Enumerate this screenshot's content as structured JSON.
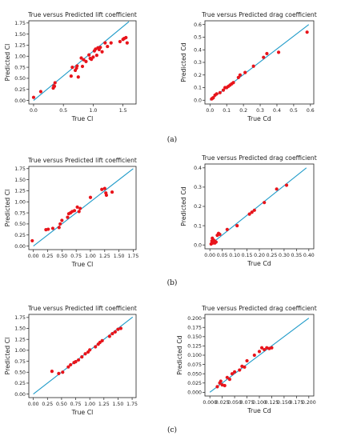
{
  "labels": [
    "(a)",
    "(b)",
    "(c)"
  ],
  "chart_data": [
    {
      "type": "scatter",
      "title": "True versus Predicted lift coefficient",
      "xlabel": "True Cl",
      "ylabel": "Predicted Cl",
      "xlim": [
        -0.08,
        1.72
      ],
      "ylim": [
        -0.08,
        1.8
      ],
      "xticks": [
        "0.0",
        "0.5",
        "1.0",
        "1.5"
      ],
      "yticks": [
        "0.00",
        "0.25",
        "0.50",
        "0.75",
        "1.00",
        "1.25",
        "1.50",
        "1.75"
      ],
      "line": [
        [
          0,
          0
        ],
        [
          1.6,
          1.78
        ]
      ],
      "points": [
        [
          0.0,
          0.07
        ],
        [
          0.12,
          0.2
        ],
        [
          0.33,
          0.28
        ],
        [
          0.35,
          0.32
        ],
        [
          0.36,
          0.4
        ],
        [
          0.34,
          0.33
        ],
        [
          0.63,
          0.55
        ],
        [
          0.65,
          0.75
        ],
        [
          0.7,
          0.68
        ],
        [
          0.72,
          0.73
        ],
        [
          0.73,
          0.78
        ],
        [
          0.75,
          0.53
        ],
        [
          0.8,
          0.96
        ],
        [
          0.84,
          0.92
        ],
        [
          0.88,
          0.88
        ],
        [
          0.93,
          1.03
        ],
        [
          0.97,
          0.93
        ],
        [
          1.0,
          0.98
        ],
        [
          1.02,
          1.12
        ],
        [
          1.04,
          1.16
        ],
        [
          1.06,
          1.02
        ],
        [
          1.08,
          1.19
        ],
        [
          1.12,
          1.2
        ],
        [
          1.15,
          1.1
        ],
        [
          1.2,
          1.3
        ],
        [
          1.24,
          1.22
        ],
        [
          1.3,
          1.3
        ],
        [
          1.45,
          1.33
        ],
        [
          1.5,
          1.38
        ],
        [
          1.52,
          1.4
        ],
        [
          1.55,
          1.42
        ],
        [
          1.57,
          1.3
        ],
        [
          0.82,
          0.77
        ],
        [
          0.95,
          0.95
        ],
        [
          1.1,
          1.15
        ]
      ]
    },
    {
      "type": "scatter",
      "title": "True versus Predicted drag coefficient",
      "xlabel": "True Cd",
      "ylabel": "Predicted Cd",
      "xlim": [
        -0.03,
        0.62
      ],
      "ylim": [
        -0.03,
        0.63
      ],
      "xticks": [
        "0.0",
        "0.1",
        "0.2",
        "0.3",
        "0.4",
        "0.5",
        "0.6"
      ],
      "yticks": [
        "0.0",
        "0.1",
        "0.2",
        "0.3",
        "0.4",
        "0.5",
        "0.6"
      ],
      "line": [
        [
          0,
          0
        ],
        [
          0.59,
          0.6
        ]
      ],
      "points": [
        [
          0.01,
          0.01
        ],
        [
          0.015,
          0.015
        ],
        [
          0.02,
          0.02
        ],
        [
          0.03,
          0.04
        ],
        [
          0.04,
          0.05
        ],
        [
          0.06,
          0.06
        ],
        [
          0.08,
          0.08
        ],
        [
          0.09,
          0.1
        ],
        [
          0.1,
          0.1
        ],
        [
          0.11,
          0.11
        ],
        [
          0.12,
          0.12
        ],
        [
          0.13,
          0.13
        ],
        [
          0.14,
          0.14
        ],
        [
          0.17,
          0.18
        ],
        [
          0.18,
          0.2
        ],
        [
          0.21,
          0.22
        ],
        [
          0.26,
          0.27
        ],
        [
          0.32,
          0.34
        ],
        [
          0.34,
          0.37
        ],
        [
          0.41,
          0.38
        ],
        [
          0.58,
          0.54
        ]
      ]
    },
    {
      "type": "scatter",
      "title": "True versus Predicted lift coefficient",
      "xlabel": "True Cl",
      "ylabel": "Predicted Cl",
      "xlim": [
        -0.08,
        1.8
      ],
      "ylim": [
        -0.08,
        1.8
      ],
      "xticks": [
        "0.00",
        "0.25",
        "0.50",
        "0.75",
        "1.00",
        "1.25",
        "1.50",
        "1.75"
      ],
      "yticks": [
        "0.00",
        "0.25",
        "0.50",
        "0.75",
        "1.00",
        "1.25",
        "1.50",
        "1.75"
      ],
      "line": [
        [
          0,
          0
        ],
        [
          1.75,
          1.75
        ]
      ],
      "points": [
        [
          -0.02,
          0.12
        ],
        [
          0.22,
          0.37
        ],
        [
          0.26,
          0.38
        ],
        [
          0.34,
          0.4
        ],
        [
          0.45,
          0.42
        ],
        [
          0.47,
          0.5
        ],
        [
          0.5,
          0.58
        ],
        [
          0.6,
          0.65
        ],
        [
          0.62,
          0.73
        ],
        [
          0.65,
          0.75
        ],
        [
          0.68,
          0.78
        ],
        [
          0.72,
          0.8
        ],
        [
          0.77,
          0.88
        ],
        [
          0.8,
          0.78
        ],
        [
          0.82,
          0.85
        ],
        [
          1.0,
          1.1
        ],
        [
          1.2,
          1.28
        ],
        [
          1.25,
          1.3
        ],
        [
          1.27,
          1.2
        ],
        [
          1.28,
          1.15
        ],
        [
          1.38,
          1.22
        ]
      ]
    },
    {
      "type": "scatter",
      "title": "True versus Predicted drag coefficient",
      "xlabel": "True Cd",
      "ylabel": "Predicted Cd",
      "xlim": [
        -0.02,
        0.42
      ],
      "ylim": [
        -0.02,
        0.42
      ],
      "xticks": [
        "0.00",
        "0.05",
        "0.10",
        "0.15",
        "0.20",
        "0.25",
        "0.30",
        "0.35",
        "0.40"
      ],
      "yticks": [
        "0.0",
        "0.1",
        "0.2",
        "0.3",
        "0.4"
      ],
      "line": [
        [
          0,
          0
        ],
        [
          0.39,
          0.4
        ]
      ],
      "points": [
        [
          0.005,
          0.005
        ],
        [
          0.008,
          0.02
        ],
        [
          0.01,
          0.035
        ],
        [
          0.012,
          0.01
        ],
        [
          0.015,
          0.025
        ],
        [
          0.02,
          0.02
        ],
        [
          0.025,
          0.015
        ],
        [
          0.03,
          0.05
        ],
        [
          0.035,
          0.06
        ],
        [
          0.07,
          0.08
        ],
        [
          0.11,
          0.1
        ],
        [
          0.16,
          0.16
        ],
        [
          0.17,
          0.17
        ],
        [
          0.18,
          0.18
        ],
        [
          0.22,
          0.22
        ],
        [
          0.27,
          0.29
        ],
        [
          0.31,
          0.31
        ],
        [
          0.04,
          0.055
        ],
        [
          0.02,
          0.01
        ]
      ]
    },
    {
      "type": "scatter",
      "title": "True versus Predicted lift coefficient",
      "xlabel": "True Cl",
      "ylabel": "Predicted Cl",
      "xlim": [
        -0.08,
        1.82
      ],
      "ylim": [
        -0.08,
        1.82
      ],
      "xticks": [
        "0.00",
        "0.25",
        "0.50",
        "0.75",
        "1.00",
        "1.25",
        "1.50",
        "1.75"
      ],
      "yticks": [
        "0.00",
        "0.25",
        "0.50",
        "0.75",
        "1.00",
        "1.25",
        "1.50",
        "1.75"
      ],
      "line": [
        [
          0,
          0
        ],
        [
          1.76,
          1.76
        ]
      ],
      "points": [
        [
          0.33,
          0.52
        ],
        [
          0.45,
          0.47
        ],
        [
          0.52,
          0.5
        ],
        [
          0.62,
          0.62
        ],
        [
          0.66,
          0.67
        ],
        [
          0.72,
          0.72
        ],
        [
          0.8,
          0.78
        ],
        [
          0.86,
          0.85
        ],
        [
          0.92,
          0.92
        ],
        [
          0.97,
          0.96
        ],
        [
          1.0,
          1.01
        ],
        [
          1.1,
          1.08
        ],
        [
          1.15,
          1.14
        ],
        [
          1.18,
          1.18
        ],
        [
          1.22,
          1.22
        ],
        [
          1.35,
          1.32
        ],
        [
          1.4,
          1.38
        ],
        [
          1.45,
          1.42
        ],
        [
          1.5,
          1.48
        ],
        [
          1.55,
          1.5
        ],
        [
          0.75,
          0.74
        ]
      ]
    },
    {
      "type": "scatter",
      "title": "True versus Predicted drag coefficient",
      "xlabel": "True Cd",
      "ylabel": "Predicted Cd",
      "xlim": [
        -0.01,
        0.21
      ],
      "ylim": [
        -0.01,
        0.21
      ],
      "xticks": [
        "0.000",
        "0.025",
        "0.050",
        "0.075",
        "0.100",
        "0.125",
        "0.150",
        "0.175",
        "0.200"
      ],
      "yticks": [
        "0.000",
        "0.025",
        "0.050",
        "0.075",
        "0.100",
        "0.125",
        "0.150",
        "0.175",
        "0.200"
      ],
      "line": [
        [
          0,
          0
        ],
        [
          0.2,
          0.2
        ]
      ],
      "points": [
        [
          0.015,
          0.015
        ],
        [
          0.02,
          0.025
        ],
        [
          0.022,
          0.03
        ],
        [
          0.025,
          0.02
        ],
        [
          0.03,
          0.018
        ],
        [
          0.035,
          0.04
        ],
        [
          0.04,
          0.035
        ],
        [
          0.045,
          0.05
        ],
        [
          0.05,
          0.055
        ],
        [
          0.06,
          0.06
        ],
        [
          0.065,
          0.07
        ],
        [
          0.07,
          0.068
        ],
        [
          0.075,
          0.085
        ],
        [
          0.09,
          0.1
        ],
        [
          0.1,
          0.11
        ],
        [
          0.105,
          0.12
        ],
        [
          0.11,
          0.115
        ],
        [
          0.115,
          0.12
        ],
        [
          0.12,
          0.118
        ],
        [
          0.125,
          0.12
        ]
      ]
    }
  ]
}
